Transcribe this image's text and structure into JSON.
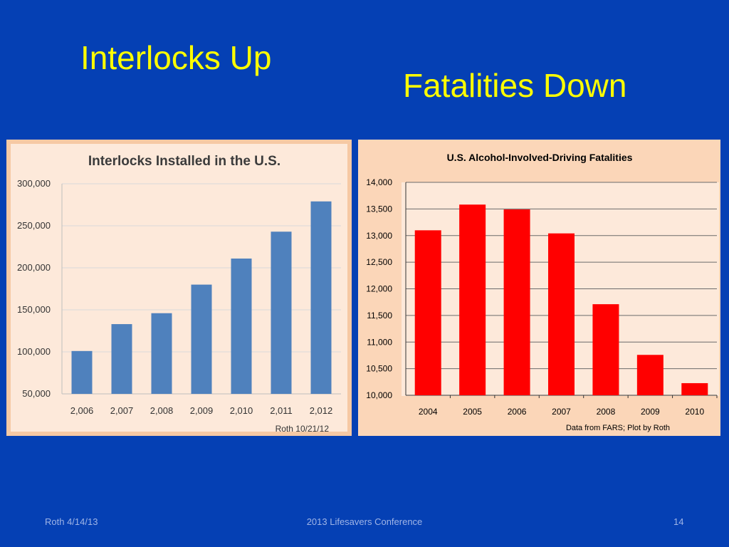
{
  "slide": {
    "title_left": "Interlocks Up",
    "title_right": "Fatalities Down",
    "footer_left": "Roth 4/14/13",
    "footer_center": "2013 Lifesavers Conference",
    "footer_right": "14"
  },
  "colors": {
    "background": "#0540b4",
    "title": "#ffff00",
    "interlock_bar": "#4f81bd",
    "fatality_bar": "#ff0000"
  },
  "chart_data": [
    {
      "type": "bar",
      "title": "Interlocks Installed in the U.S.",
      "categories": [
        "2,006",
        "2,007",
        "2,008",
        "2,009",
        "2,010",
        "2,011",
        "2,012"
      ],
      "values": [
        101000,
        133000,
        146000,
        180000,
        211000,
        243000,
        279000
      ],
      "yticks": [
        "50,000",
        "100,000",
        "150,000",
        "200,000",
        "250,000",
        "300,000"
      ],
      "ylim": [
        50000,
        300000
      ],
      "grid": true,
      "annotation": "Roth 10/21/12"
    },
    {
      "type": "bar",
      "title": "U.S. Alcohol-Involved-Driving Fatalities",
      "categories": [
        "2004",
        "2005",
        "2006",
        "2007",
        "2008",
        "2009",
        "2010"
      ],
      "values": [
        13099,
        13582,
        13491,
        13041,
        11711,
        10759,
        10228
      ],
      "yticks": [
        "10,000",
        "10,500",
        "11,000",
        "11,500",
        "12,000",
        "12,500",
        "13,000",
        "13,500",
        "14,000"
      ],
      "ylim": [
        10000,
        14000
      ],
      "grid": true,
      "annotation": "Data from FARS; Plot by Roth"
    }
  ]
}
